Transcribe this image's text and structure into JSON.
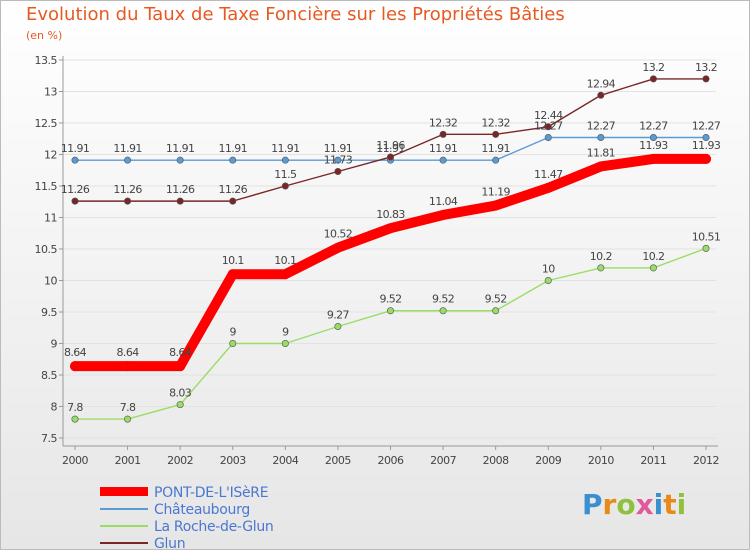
{
  "header": {
    "title": "Evolution du Taux de Taxe Foncière sur les Propriétés Bâties",
    "unit": "(en %)"
  },
  "logo": {
    "text": "Proxiti",
    "letters": [
      "P",
      "r",
      "o",
      "x",
      "i",
      "t",
      "i"
    ],
    "colors": [
      "#3a8fd0",
      "#e88a1a",
      "#8fc13d",
      "#e05a9a",
      "#3a8fd0",
      "#e88a1a",
      "#8fc13d"
    ]
  },
  "chart_data": {
    "type": "line",
    "title": "Evolution du Taux de Taxe Foncière sur les Propriétés Bâties",
    "ylabel": "(en %)",
    "xlabel": "",
    "categories": [
      "2000",
      "2001",
      "2002",
      "2003",
      "2004",
      "2005",
      "2006",
      "2007",
      "2008",
      "2009",
      "2010",
      "2011",
      "2012"
    ],
    "ylim": [
      7.5,
      13.5
    ],
    "yticks": [
      7.5,
      8,
      8.5,
      9,
      9.5,
      10,
      10.5,
      11,
      11.5,
      12,
      12.5,
      13,
      13.5
    ],
    "ytick_labels": [
      "7.5",
      "8",
      "8.5",
      "9",
      "9.5",
      "10",
      "10.5",
      "11",
      "11.5",
      "12",
      "12.5",
      "13",
      "13.5"
    ],
    "legend_position": "bottom-left",
    "series": [
      {
        "name": "PONT-DE-L'ISèRE",
        "color": "#ff0000",
        "values": [
          8.64,
          8.64,
          8.64,
          10.1,
          10.1,
          10.52,
          10.83,
          11.04,
          11.19,
          11.47,
          11.81,
          11.93,
          11.93
        ],
        "labels": [
          "8.64",
          "8.64",
          "8.64",
          "10.1",
          "10.1",
          "10.52",
          "10.83",
          "11.04",
          "11.19",
          "11.47",
          "11.81",
          "11.93",
          "11.93"
        ]
      },
      {
        "name": "Châteaubourg",
        "color": "#5b9bd5",
        "values": [
          11.91,
          11.91,
          11.91,
          11.91,
          11.91,
          11.91,
          11.91,
          11.91,
          11.91,
          12.27,
          12.27,
          12.27,
          12.27
        ],
        "labels": [
          "11.91",
          "11.91",
          "11.91",
          "11.91",
          "11.91",
          "11.91",
          "11.91",
          "11.91",
          "11.91",
          "12.27",
          "12.27",
          "12.27",
          "12.27"
        ]
      },
      {
        "name": "La Roche-de-Glun",
        "color": "#99dd66",
        "values": [
          7.8,
          7.8,
          8.03,
          9,
          9,
          9.27,
          9.52,
          9.52,
          9.52,
          10,
          10.2,
          10.2,
          10.51
        ],
        "labels": [
          "7.8",
          "7.8",
          "8.03",
          "9",
          "9",
          "9.27",
          "9.52",
          "9.52",
          "9.52",
          "10",
          "10.2",
          "10.2",
          "10.51"
        ]
      },
      {
        "name": "Glun",
        "color": "#7a2626",
        "values": [
          11.26,
          11.26,
          11.26,
          11.26,
          11.5,
          11.73,
          11.96,
          12.32,
          12.32,
          12.44,
          12.94,
          13.2,
          13.2
        ],
        "labels": [
          "11.26",
          "11.26",
          "11.26",
          "11.26",
          "11.5",
          "11.73",
          "11.96",
          "12.32",
          "12.32",
          "12.44",
          "12.94",
          "13.2",
          "13.2"
        ]
      }
    ]
  }
}
